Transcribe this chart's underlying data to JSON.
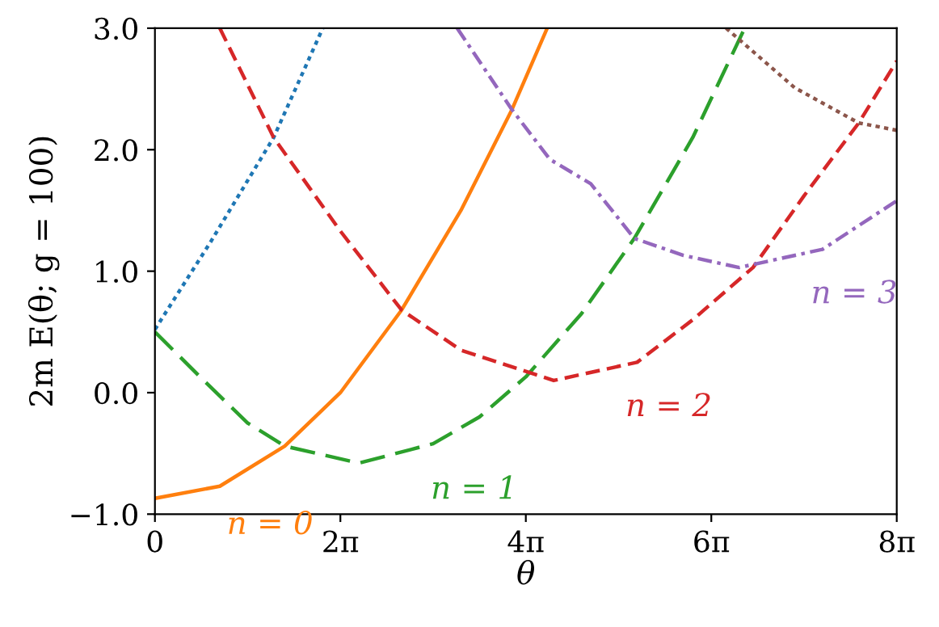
{
  "chart_data": {
    "type": "line",
    "xlabel": "θ",
    "ylabel": "2m E(θ; g = 100)",
    "xlim": [
      0,
      25.133
    ],
    "ylim": [
      -1,
      3
    ],
    "xticks": [
      {
        "value": 0,
        "label": "0"
      },
      {
        "value": 6.283,
        "label": "2π"
      },
      {
        "value": 12.566,
        "label": "4π"
      },
      {
        "value": 18.85,
        "label": "6π"
      },
      {
        "value": 25.133,
        "label": "8π"
      }
    ],
    "yticks": [
      {
        "value": -1,
        "label": "−1.0"
      },
      {
        "value": 0,
        "label": "0.0"
      },
      {
        "value": 1,
        "label": "1.0"
      },
      {
        "value": 2,
        "label": "2.0"
      },
      {
        "value": 3,
        "label": "3.0"
      }
    ],
    "grid": false,
    "legend": false,
    "marker": "none",
    "series": [
      {
        "color": "#1f77b4",
        "line_style": "dotted",
        "x": [
          0,
          1.885,
          4.021,
          5.686
        ],
        "values": [
          0.52,
          1.24,
          2.1,
          3.0
        ]
      },
      {
        "name": "n = 0",
        "color": "#ff7f0e",
        "line_style": "solid",
        "x": [
          0,
          2.199,
          4.398,
          6.283,
          8.357,
          10.367,
          12.095,
          13.289
        ],
        "values": [
          -0.87,
          -0.77,
          -0.44,
          0.0,
          0.68,
          1.5,
          2.33,
          3.0
        ]
      },
      {
        "name": "n = 1",
        "color": "#2ca02c",
        "line_style": "longdash",
        "x": [
          0,
          1.571,
          3.142,
          4.398,
          6.912,
          9.425,
          10.996,
          12.566,
          14.451,
          16.242,
          18.221,
          19.98
        ],
        "values": [
          0.5,
          0.12,
          -0.25,
          -0.44,
          -0.58,
          -0.42,
          -0.2,
          0.13,
          0.65,
          1.27,
          2.1,
          3.0
        ]
      },
      {
        "name": "n = 2",
        "color": "#d62728",
        "line_style": "dashed",
        "x": [
          2.199,
          4.021,
          6.283,
          8.357,
          10.367,
          13.509,
          16.336,
          18.221,
          20.263,
          21.991,
          23.845,
          25.133
        ],
        "values": [
          3.0,
          2.1,
          1.33,
          0.68,
          0.35,
          0.1,
          0.25,
          0.6,
          1.03,
          1.62,
          2.22,
          2.73
        ]
      },
      {
        "name": "n = 3",
        "color": "#9467bd",
        "line_style": "dashdot",
        "x": [
          10.242,
          12.095,
          13.383,
          14.765,
          16.242,
          17.907,
          19.792,
          22.619,
          25.133
        ],
        "values": [
          3.0,
          2.33,
          1.92,
          1.72,
          1.27,
          1.13,
          1.03,
          1.18,
          1.58
        ]
      },
      {
        "color": "#8c564b",
        "line_style": "dotted",
        "x": [
          19.352,
          21.677,
          23.845,
          25.133
        ],
        "values": [
          3.0,
          2.51,
          2.22,
          2.16
        ]
      }
    ]
  }
}
